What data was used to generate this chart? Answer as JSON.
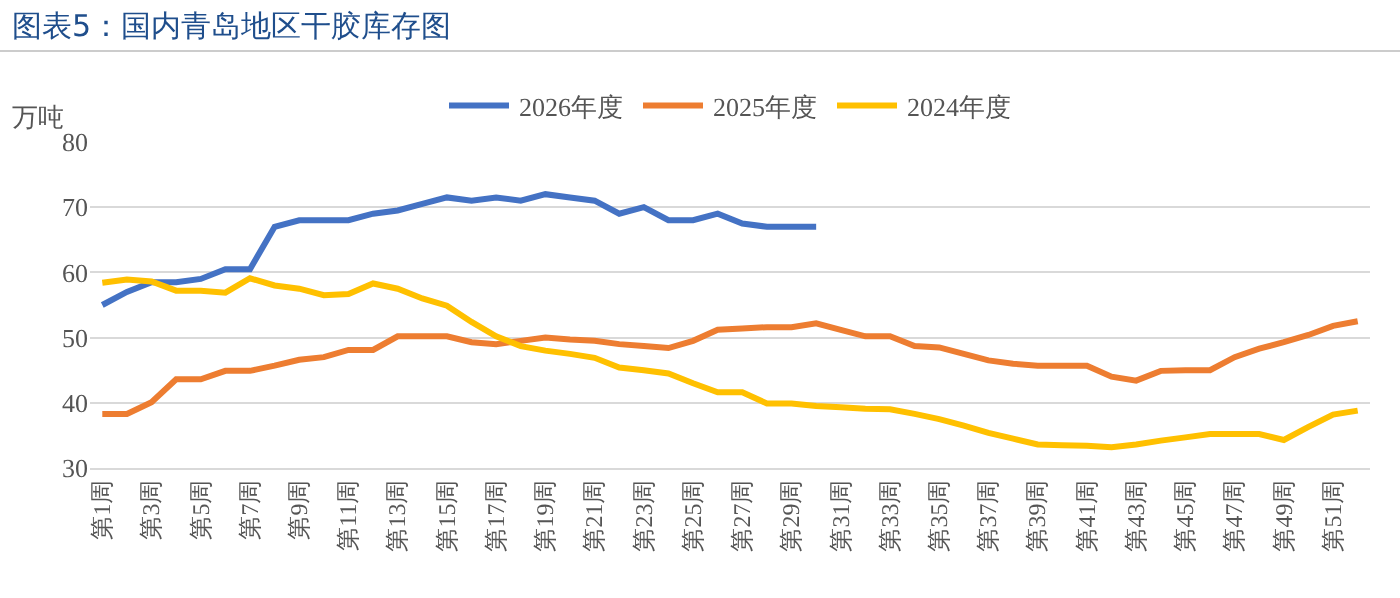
{
  "chart_data": {
    "type": "line",
    "title": "图表5：国内青岛地区干胶库存图",
    "ylabel": "万吨",
    "categories": [
      "第1周",
      null,
      "第3周",
      null,
      "第5周",
      null,
      "第7周",
      null,
      "第9周",
      null,
      "第11周",
      null,
      "第13周",
      null,
      "第15周",
      null,
      "第17周",
      null,
      "第19周",
      null,
      "第21周",
      null,
      "第23周",
      null,
      "第25周",
      null,
      "第27周",
      null,
      "第29周",
      null,
      "第31周",
      null,
      "第33周",
      null,
      "第35周",
      null,
      "第37周",
      null,
      "第39周",
      null,
      "第41周",
      null,
      "第43周",
      null,
      "第45周",
      null,
      "第47周",
      null,
      "第49周",
      null,
      "第51周",
      null
    ],
    "series": [
      {
        "name": "2026年度",
        "color": "#4472c4",
        "values": [
          55,
          57,
          58.5,
          58.5,
          59,
          60.5,
          60.5,
          67,
          68,
          68,
          68,
          69,
          69.5,
          70.5,
          71.5,
          71,
          71.5,
          71,
          72,
          71.5,
          71,
          69,
          70,
          68,
          68,
          69,
          67.5,
          67,
          67,
          67,
          null,
          null,
          null,
          null,
          null,
          null,
          null,
          null,
          null,
          null,
          null,
          null,
          null,
          null,
          null,
          null,
          null,
          null,
          null,
          null,
          null,
          null
        ]
      },
      {
        "name": "2025年度",
        "color": "#ed7d31",
        "values": [
          38.3,
          38.3,
          40.1,
          43.6,
          43.6,
          44.9,
          44.9,
          45.7,
          46.6,
          47,
          48.1,
          48.1,
          50.2,
          50.2,
          50.2,
          49.3,
          49,
          49.5,
          50,
          49.7,
          49.5,
          49,
          48.7,
          48.4,
          49.5,
          51.2,
          51.4,
          51.6,
          51.6,
          52.2,
          51.2,
          50.2,
          50.2,
          48.7,
          48.5,
          47.5,
          46.5,
          46,
          45.7,
          45.7,
          45.7,
          44,
          43.4,
          44.9,
          45,
          45,
          47,
          48.3,
          49.3,
          50.4,
          51.8,
          52.5
        ]
      },
      {
        "name": "2024年度",
        "color": "#ffc000",
        "values": [
          58.4,
          58.9,
          58.6,
          57.2,
          57.2,
          56.9,
          59.1,
          58,
          57.5,
          56.5,
          56.7,
          58.3,
          57.5,
          56,
          54.9,
          52.4,
          50.2,
          48.7,
          48,
          47.5,
          46.9,
          45.4,
          45,
          44.5,
          43,
          41.6,
          41.6,
          39.9,
          39.9,
          39.5,
          39.3,
          39.1,
          39,
          38.3,
          37.5,
          36.5,
          35.4,
          34.5,
          33.6,
          33.5,
          33.4,
          33.2,
          33.6,
          34.2,
          34.7,
          35.2,
          35.2,
          35.2,
          34.3,
          36.3,
          38.2,
          38.8
        ]
      }
    ],
    "ylim": [
      30,
      80
    ],
    "yticks": [
      30,
      40,
      50,
      60,
      70,
      80
    ],
    "grid": "y",
    "legend": "top",
    "marker": "none",
    "line_style": "solid"
  }
}
